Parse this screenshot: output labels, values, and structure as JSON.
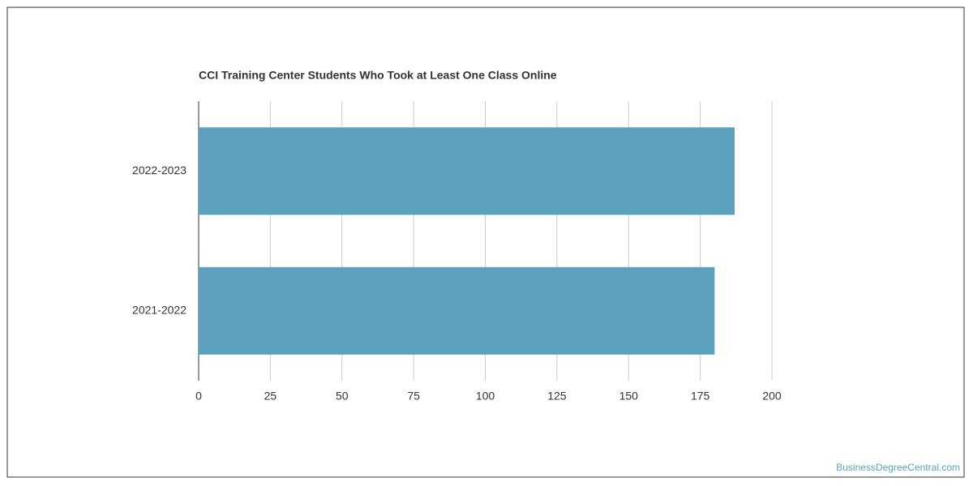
{
  "chart_data": {
    "type": "bar",
    "orientation": "horizontal",
    "title": "CCI Training Center Students Who Took at Least One Class Online",
    "categories": [
      "2022-2023",
      "2021-2022"
    ],
    "values": [
      187,
      180
    ],
    "color": "#5ba1bd",
    "xlim": [
      0,
      200
    ],
    "xticks": [
      0,
      25,
      50,
      75,
      100,
      125,
      150,
      175,
      200
    ],
    "grid": true,
    "source": "BusinessDegreeCentral.com"
  }
}
